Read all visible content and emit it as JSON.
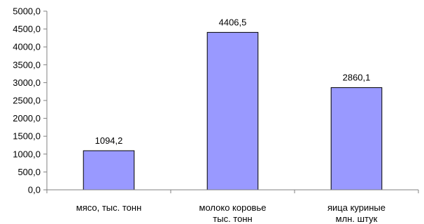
{
  "chart_data": {
    "type": "bar",
    "categories": [
      [
        "мясо, тыс. тонн"
      ],
      [
        "молоко коровье",
        "тыс. тонн"
      ],
      [
        "яица куриные",
        "млн. штук"
      ]
    ],
    "values": [
      1094.2,
      4406.5,
      2860.1
    ],
    "value_labels": [
      "1094,2",
      "4406,5",
      "2860,1"
    ],
    "y_ticks": [
      "0,0",
      "500,0",
      "1000,0",
      "1500,0",
      "2000,0",
      "2500,0",
      "3000,0",
      "3500,0",
      "4000,0",
      "4500,0",
      "5000,0"
    ],
    "ylim": [
      0,
      5000
    ],
    "title": "",
    "xlabel": "",
    "ylabel": "",
    "grid": false,
    "legend": "none",
    "colors": {
      "bar_fill": "#9999ff",
      "bar_stroke": "#000000",
      "axis": "#808080"
    }
  }
}
